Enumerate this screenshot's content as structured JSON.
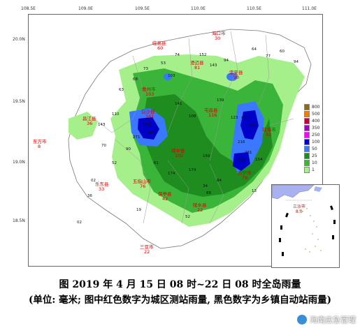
{
  "axes": {
    "longitude_ticks": [
      "108.5E",
      "109.0E",
      "109.5E",
      "110.0E",
      "110.5E",
      "111.0E"
    ],
    "latitude_ticks": [
      "20.0N",
      "19.5N",
      "19.0N",
      "18.5N"
    ]
  },
  "legend": [
    {
      "label": "800",
      "color": "#8b6a1f"
    },
    {
      "label": "500",
      "color": "#f07f00"
    },
    {
      "label": "400",
      "color": "#c00040"
    },
    {
      "label": "350",
      "color": "#a000c0"
    },
    {
      "label": "250",
      "color": "#ff00ff"
    },
    {
      "label": "100",
      "color": "#0000c8"
    },
    {
      "label": "50",
      "color": "#3a78ff"
    },
    {
      "label": "25",
      "color": "#1e8c1e"
    },
    {
      "label": "10",
      "color": "#3ab53a"
    },
    {
      "label": "1",
      "color": "#a6f08c"
    }
  ],
  "cities": [
    {
      "name": "海口市",
      "value": "30"
    },
    {
      "name": "临高县",
      "value": "60"
    },
    {
      "name": "澄迈县",
      "value": "81"
    },
    {
      "name": "定安县",
      "value": "90"
    },
    {
      "name": "儋州市",
      "value": "103"
    },
    {
      "name": "昌江县",
      "value": "36"
    },
    {
      "name": "东方市",
      "value": "8"
    },
    {
      "name": "白沙县",
      "value": "161"
    },
    {
      "name": "琼中县",
      "value": "102"
    },
    {
      "name": "屯昌县",
      "value": "116"
    },
    {
      "name": "琼海市",
      "value": "92"
    },
    {
      "name": "万宁市",
      "value": "78"
    },
    {
      "name": "乐东县",
      "value": "33"
    },
    {
      "name": "五指山市",
      "value": "76"
    },
    {
      "name": "保亭县",
      "value": "42"
    },
    {
      "name": "陵水县",
      "value": "22"
    },
    {
      "name": "三亚市",
      "value": "22"
    },
    {
      "name": "三沙市",
      "value": "8.0"
    }
  ],
  "caption": {
    "line1": "图 2019 年 4 月 15 日 08 时~22 日 08 时全岛雨量",
    "line2": "(单位: 毫米; 图中红色数字为城区测站雨量, 黑色数字为乡镇自动站雨量)"
  },
  "watermark": "海南应急管理"
}
